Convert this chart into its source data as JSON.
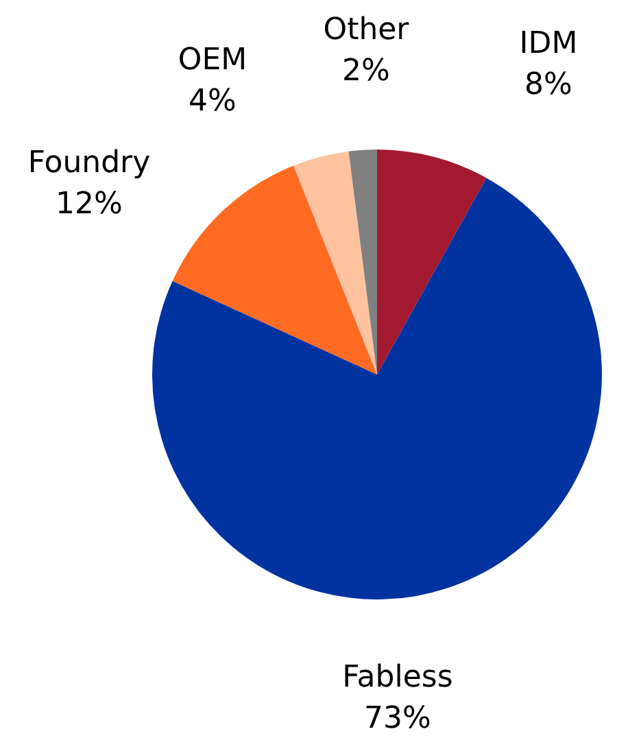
{
  "chart_data": {
    "type": "pie",
    "categories": [
      "IDM",
      "Fabless",
      "Foundry",
      "OEM",
      "Other"
    ],
    "values": [
      8,
      73,
      12,
      4,
      2
    ],
    "colors": [
      "#a31a30",
      "#0033a0",
      "#ff6b22",
      "#ffc3a0",
      "#808080"
    ],
    "value_labels": [
      "8%",
      "73%",
      "12%",
      "4%",
      "2%"
    ],
    "legend": false
  }
}
